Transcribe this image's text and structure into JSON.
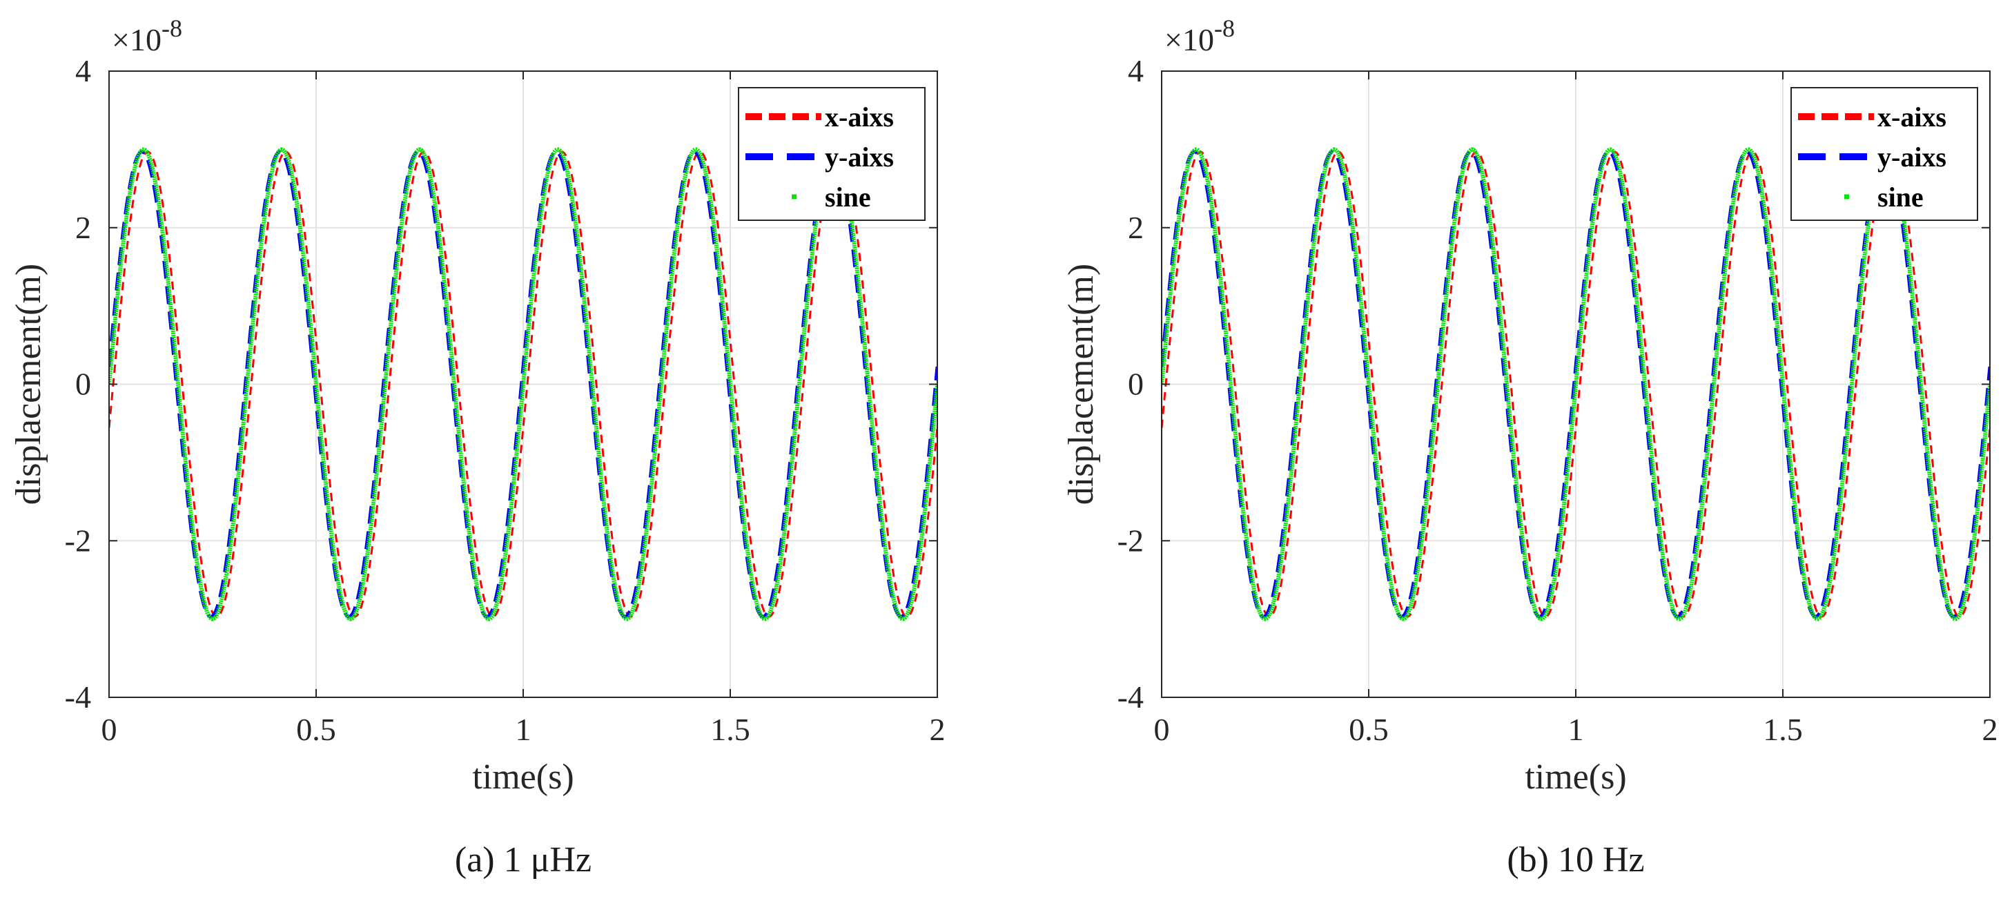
{
  "chart_data": [
    {
      "type": "line",
      "caption": "(a) 1 μHz",
      "xlabel": "time(s)",
      "ylabel": "displacement(m)",
      "xlim": [
        0,
        2
      ],
      "ylim": [
        -4,
        4
      ],
      "y_exponent_label": "×10",
      "y_exponent_power": "-8",
      "x_ticks": [
        0,
        0.5,
        1,
        1.5,
        2
      ],
      "x_tick_labels": [
        "0",
        "0.5",
        "1",
        "1.5",
        "2"
      ],
      "y_ticks": [
        -4,
        -2,
        0,
        2,
        4
      ],
      "y_tick_labels": [
        "-4",
        "-2",
        "0",
        "2",
        "4"
      ],
      "grid": true,
      "legend_position": "top-right",
      "series": [
        {
          "name": "x-aixs",
          "color": "#ff0000",
          "style": "dashed",
          "amplitude": 2.97,
          "frequency_hz": 3,
          "phase_shift_s": 0.01
        },
        {
          "name": "y-aixs",
          "color": "#0000ff",
          "style": "long-dashed",
          "amplitude": 2.97,
          "frequency_hz": 3,
          "phase_shift_s": -0.004
        },
        {
          "name": "sine",
          "color": "#00e600",
          "style": "dotted",
          "amplitude": 3.0,
          "frequency_hz": 3,
          "phase_shift_s": 0
        }
      ]
    },
    {
      "type": "line",
      "caption": "(b) 10 Hz",
      "xlabel": "time(s)",
      "ylabel": "displacement(m)",
      "xlim": [
        0,
        2
      ],
      "ylim": [
        -4,
        4
      ],
      "y_exponent_label": "×10",
      "y_exponent_power": "-8",
      "x_ticks": [
        0,
        0.5,
        1,
        1.5,
        2
      ],
      "x_tick_labels": [
        "0",
        "0.5",
        "1",
        "1.5",
        "2"
      ],
      "y_ticks": [
        -4,
        -2,
        0,
        2,
        4
      ],
      "y_tick_labels": [
        "-4",
        "-2",
        "0",
        "2",
        "4"
      ],
      "grid": true,
      "legend_position": "top-right",
      "series": [
        {
          "name": "x-aixs",
          "color": "#ff0000",
          "style": "dashed",
          "amplitude": 2.97,
          "frequency_hz": 3,
          "phase_shift_s": 0.01
        },
        {
          "name": "y-aixs",
          "color": "#0000ff",
          "style": "long-dashed",
          "amplitude": 2.97,
          "frequency_hz": 3,
          "phase_shift_s": -0.004
        },
        {
          "name": "sine",
          "color": "#00e600",
          "style": "dotted",
          "amplitude": 3.0,
          "frequency_hz": 3,
          "phase_shift_s": 0
        }
      ]
    }
  ]
}
